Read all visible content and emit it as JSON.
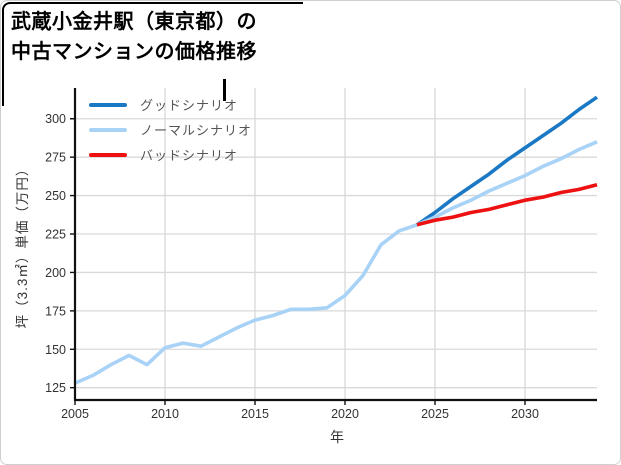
{
  "title": {
    "line1": "武蔵小金井駅（東京都）の",
    "line2": "中古マンションの価格推移"
  },
  "chart_data": {
    "type": "line",
    "title": "武蔵小金井駅（東京都）の中古マンションの価格推移",
    "xlabel": "年",
    "ylabel": "坪（3.3㎡）単価（万円）",
    "xlim": [
      2005,
      2034
    ],
    "ylim": [
      117,
      320
    ],
    "x_ticks": [
      2005,
      2010,
      2015,
      2020,
      2025,
      2030
    ],
    "y_ticks": [
      125,
      150,
      175,
      200,
      225,
      250,
      275,
      300
    ],
    "grid": true,
    "legend_position": "upper-left-inside",
    "colors": {
      "grid": "#d9d9d9",
      "axis": "#111111",
      "good": "#1a78c4",
      "normal": "#a9d2f7",
      "bad": "#ee1111"
    },
    "legend": [
      {
        "label": "グッドシナリオ",
        "color": "#1a78c4"
      },
      {
        "label": "ノーマルシナリオ",
        "color": "#a9d2f7"
      },
      {
        "label": "バッドシナリオ",
        "color": "#ee1111"
      }
    ],
    "series": [
      {
        "key": "historical",
        "color": "#a9d2f7",
        "x": [
          2005,
          2006,
          2007,
          2008,
          2009,
          2010,
          2011,
          2012,
          2013,
          2014,
          2015,
          2016,
          2017,
          2018,
          2019,
          2020,
          2021,
          2022,
          2023,
          2024
        ],
        "values": [
          128,
          133,
          140,
          146,
          140,
          151,
          154,
          152,
          158,
          164,
          169,
          172,
          176,
          176,
          177,
          185,
          198,
          218,
          227,
          231
        ]
      },
      {
        "key": "good-scenario",
        "color": "#1a78c4",
        "x": [
          2024,
          2025,
          2026,
          2027,
          2028,
          2029,
          2030,
          2031,
          2032,
          2033,
          2034
        ],
        "values": [
          231,
          239,
          248,
          256,
          264,
          273,
          281,
          289,
          297,
          306,
          314
        ]
      },
      {
        "key": "normal-scenario",
        "color": "#a9d2f7",
        "x": [
          2024,
          2025,
          2026,
          2027,
          2028,
          2029,
          2030,
          2031,
          2032,
          2033,
          2034
        ],
        "values": [
          231,
          236,
          242,
          247,
          253,
          258,
          263,
          269,
          274,
          280,
          285
        ]
      },
      {
        "key": "bad-scenario",
        "color": "#ee1111",
        "x": [
          2024,
          2025,
          2026,
          2027,
          2028,
          2029,
          2030,
          2031,
          2032,
          2033,
          2034
        ],
        "values": [
          231,
          234,
          236,
          239,
          241,
          244,
          247,
          249,
          252,
          254,
          257
        ]
      }
    ]
  }
}
